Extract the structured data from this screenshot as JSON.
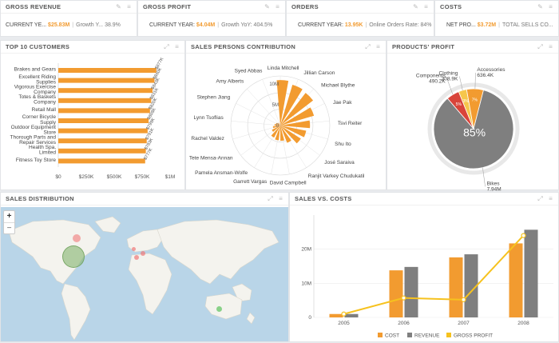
{
  "kpis": [
    {
      "title": "GROSS REVENUE",
      "label": "CURRENT YE...",
      "value": "$25.83M",
      "sub": "Growth Y...",
      "subval": "38.9%"
    },
    {
      "title": "GROSS PROFIT",
      "label": "CURRENT YEAR:",
      "value": "$4.04M",
      "sub": "Growth YoY:",
      "subval": "404.5%"
    },
    {
      "title": "ORDERS",
      "label": "CURRENT YEAR:",
      "value": "13.95K",
      "sub": "Online Orders Rate:",
      "subval": "84%"
    },
    {
      "title": "COSTS",
      "label": "NET PRO...",
      "value": "$3.72M",
      "sub": "TOTAL SELLS CO...",
      "subval": ""
    }
  ],
  "panels": {
    "top10": "TOP 10 CUSTOMERS",
    "sales_persons": "SALES PERSONS CONTRIBUTION",
    "products_profit": "PRODUCTS' PROFIT",
    "sales_distribution": "SALES DISTRIBUTION",
    "sales_vs_costs": "SALES vs. COSTS"
  },
  "chart_data": [
    {
      "type": "bar",
      "orientation": "horizontal",
      "title": "TOP 10 CUSTOMERS",
      "categories": [
        "Brakes and Gears",
        "Excellent Riding Supplies",
        "Vigorous Exercise Company",
        "Totes & Baskets Company",
        "Retail Mall",
        "Corner Bicycle Supply",
        "Outdoor Equipment Store",
        "Thorough Parts and Repair Services",
        "Health Spa, Limited",
        "Fitness Toy Store"
      ],
      "values": [
        877000,
        860000,
        843000,
        831000,
        820000,
        808000,
        799000,
        791000,
        783000,
        777000
      ],
      "value_labels": [
        "$877K",
        "$860K",
        "$843K",
        "$831K",
        "$820K",
        "$808K",
        "$799K",
        "$791K",
        "$783K",
        "$777K"
      ],
      "xticks": [
        "$0",
        "$250K",
        "$500K",
        "$750K",
        "$1M"
      ],
      "xlim": [
        0,
        1000000
      ],
      "color": "#f29b30"
    },
    {
      "type": "polar-bar",
      "title": "SALES PERSONS CONTRIBUTION",
      "categories": [
        "Linda Mitchell",
        "Jillian Carson",
        "Michael Blythe",
        "Jae Pak",
        "Tsvi Reiter",
        "Shu Ito",
        "José Saraiva",
        "Ranjit Varkey Chudukatil",
        "David Campbell",
        "Garrett Vargas",
        "Pamela Ansman-Wolfe",
        "Tete Mensa-Annan",
        "Rachel Valdez",
        "Lynn Tsoflias",
        "Stephen Jiang",
        "Amy Alberts",
        "Syed Abbas"
      ],
      "values": [
        11000000,
        10300000,
        10000000,
        8500000,
        7200000,
        6400000,
        5900000,
        4500000,
        3700000,
        3600000,
        3300000,
        2300000,
        1800000,
        1400000,
        1100000,
        800000,
        200000
      ],
      "rticks": [
        "0",
        "5M",
        "10M"
      ],
      "color": "#f29b30"
    },
    {
      "type": "pie",
      "title": "PRODUCTS' PROFIT",
      "categories": [
        "Bikes",
        "Components",
        "Clothing",
        "Accessories"
      ],
      "values": [
        7940000,
        490200,
        308900,
        636400
      ],
      "value_labels": [
        "7.94M",
        "490.2K",
        "308.9K",
        "636.4K"
      ],
      "percent_labels": [
        "85%",
        "5%",
        "3%",
        "7%"
      ],
      "colors": [
        "#7f7f7f",
        "#d9443a",
        "#f6c64b",
        "#f29b30"
      ]
    },
    {
      "type": "bar+line",
      "title": "SALES vs. COSTS",
      "categories": [
        "2005",
        "2006",
        "2007",
        "2008"
      ],
      "series": [
        {
          "name": "COST",
          "type": "bar",
          "values": [
            1000000,
            13800000,
            17600000,
            21700000
          ],
          "color": "#f29b30"
        },
        {
          "name": "REVENUE",
          "type": "bar",
          "values": [
            1000000,
            14800000,
            18500000,
            25700000
          ],
          "color": "#7f7f7f"
        },
        {
          "name": "GROSS PROFIT",
          "type": "line",
          "values": [
            1000000,
            5700000,
            5200000,
            24000000
          ],
          "color": "#f6c21e"
        }
      ],
      "yticks": [
        "0",
        "10M",
        "20M"
      ],
      "ylim": [
        0,
        30000000
      ]
    }
  ],
  "map": {
    "zoom_in": "+",
    "zoom_out": "−"
  }
}
